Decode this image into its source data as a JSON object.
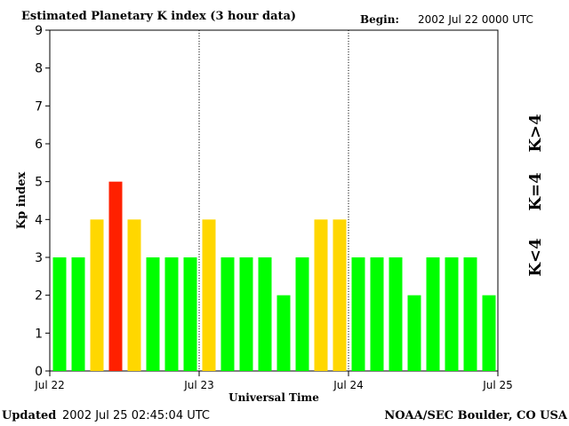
{
  "chart_data": {
    "type": "bar",
    "title": "Estimated Planetary K index (3 hour data)",
    "begin_label": "Begin:",
    "begin_value": "2002 Jul 22 0000 UTC",
    "xlabel": "Universal Time",
    "ylabel": "Kp index",
    "ylim": [
      0,
      9
    ],
    "yticks": [
      "0",
      "1",
      "2",
      "3",
      "4",
      "5",
      "6",
      "7",
      "8",
      "9"
    ],
    "xtick_labels": [
      "Jul 22",
      "Jul 23",
      "Jul 24",
      "Jul 25"
    ],
    "values": [
      3,
      3,
      4,
      5,
      4,
      3,
      3,
      3,
      4,
      3,
      3,
      3,
      2,
      3,
      4,
      4,
      3,
      3,
      3,
      2,
      3,
      3,
      3,
      2
    ],
    "legend": [
      {
        "label": "K<4",
        "color": "#00ff00"
      },
      {
        "label": "K=4",
        "color": "#ffd700"
      },
      {
        "label": "K>4",
        "color": "#ff2000"
      }
    ]
  },
  "footer": {
    "updated_label": "Updated",
    "updated_value": "2002 Jul 25 02:45:04 UTC",
    "credit": "NOAA/SEC Boulder, CO USA"
  },
  "colors": {
    "low": "#00ff00",
    "moderate": "#ffd700",
    "high": "#ff2000"
  }
}
